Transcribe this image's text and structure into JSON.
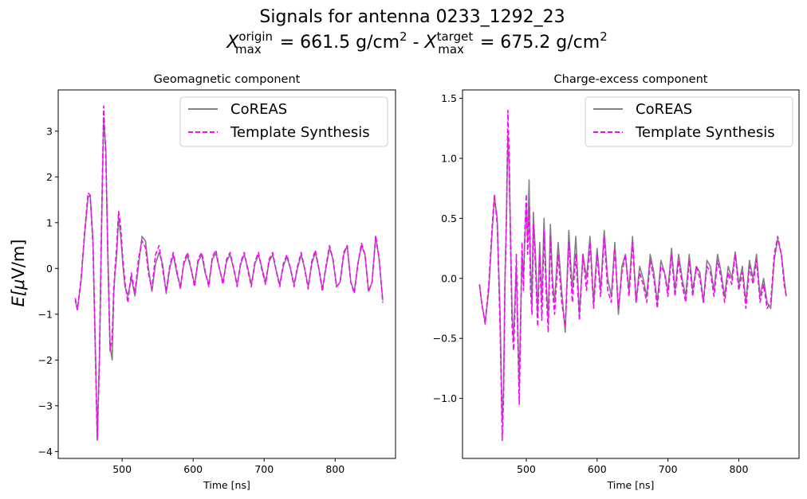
{
  "figure": {
    "title_line1": "Signals for antenna 0233_1292_23",
    "title_line2": {
      "sym1": "X",
      "sup1": "origin",
      "sub1": "max",
      "value1": " =  661.5 g/cm",
      "sep": " -  ",
      "sym2": "X",
      "sup2": "target",
      "sub2": "max",
      "value2": " =  675.2 g/cm",
      "exp": "2"
    }
  },
  "chart_data": [
    {
      "type": "line",
      "title": "Geomagnetic component",
      "xlabel": "Time [ns]",
      "ylabel_main": "E[",
      "ylabel_mu": "μ",
      "ylabel_unit": "V/m]",
      "xlim": [
        410,
        885
      ],
      "ylim": [
        -4.15,
        3.9
      ],
      "xticks": [
        500,
        600,
        700,
        800
      ],
      "yticks": [
        -4,
        -3,
        -2,
        -1,
        0,
        1,
        2,
        3
      ],
      "legend": {
        "position": "upper-right",
        "entries": [
          "CoREAS",
          "Template Synthesis"
        ]
      },
      "series": [
        {
          "name": "CoREAS",
          "color": "#808080",
          "dash": "solid",
          "x": [
            434,
            437,
            442,
            447,
            452,
            455,
            459,
            463,
            465,
            468,
            471,
            474,
            477,
            480,
            483,
            486,
            488,
            490,
            492,
            495,
            498,
            501,
            504,
            508,
            513,
            518,
            523,
            528,
            533,
            537,
            542,
            547,
            552,
            557,
            562,
            567,
            572,
            577,
            582,
            587,
            592,
            597,
            602,
            607,
            612,
            617,
            622,
            627,
            632,
            637,
            642,
            647,
            652,
            657,
            662,
            667,
            672,
            677,
            682,
            687,
            692,
            697,
            702,
            707,
            712,
            717,
            722,
            727,
            732,
            737,
            742,
            747,
            752,
            757,
            762,
            767,
            772,
            777,
            782,
            787,
            792,
            797,
            802,
            807,
            812,
            817,
            822,
            827,
            832,
            837,
            842,
            847,
            852,
            857,
            862,
            867
          ],
          "y": [
            -0.7,
            -0.9,
            -0.3,
            0.7,
            1.55,
            1.6,
            0.6,
            -2.2,
            -3.7,
            -2.0,
            0.8,
            3.3,
            2.6,
            0.3,
            -1.7,
            -2.0,
            -0.6,
            -0.1,
            0.2,
            1.1,
            0.7,
            0.1,
            -0.4,
            -0.6,
            -0.2,
            -0.6,
            0.05,
            0.7,
            0.6,
            0.0,
            -0.5,
            0.1,
            0.35,
            0.1,
            -0.55,
            0.0,
            0.3,
            -0.1,
            -0.4,
            0.1,
            0.28,
            0.0,
            -0.35,
            0.15,
            0.3,
            -0.1,
            -0.35,
            0.2,
            0.33,
            0.0,
            -0.3,
            0.15,
            0.3,
            0.0,
            -0.35,
            0.1,
            0.3,
            0.0,
            -0.35,
            0.1,
            0.3,
            0.0,
            -0.3,
            0.15,
            0.3,
            -0.05,
            -0.35,
            0.05,
            0.25,
            0.0,
            -0.35,
            0.0,
            0.3,
            0.0,
            -0.4,
            0.1,
            0.35,
            0.0,
            -0.45,
            0.0,
            0.45,
            0.2,
            -0.4,
            -0.3,
            0.3,
            0.5,
            -0.3,
            -0.5,
            0.1,
            0.5,
            0.3,
            -0.5,
            -0.3,
            0.7,
            0.2,
            -0.7
          ]
        },
        {
          "name": "Template Synthesis",
          "color": "#ff00ff",
          "dash": "dashed",
          "x": [
            434,
            437,
            442,
            447,
            452,
            455,
            459,
            463,
            465,
            468,
            471,
            474,
            477,
            480,
            483,
            486,
            488,
            490,
            492,
            495,
            498,
            501,
            504,
            508,
            513,
            518,
            523,
            528,
            533,
            537,
            542,
            547,
            552,
            557,
            562,
            567,
            572,
            577,
            582,
            587,
            592,
            597,
            602,
            607,
            612,
            617,
            622,
            627,
            632,
            637,
            642,
            647,
            652,
            657,
            662,
            667,
            672,
            677,
            682,
            687,
            692,
            697,
            702,
            707,
            712,
            717,
            722,
            727,
            732,
            737,
            742,
            747,
            752,
            757,
            762,
            767,
            772,
            777,
            782,
            787,
            792,
            797,
            802,
            807,
            812,
            817,
            822,
            827,
            832,
            837,
            842,
            847,
            852,
            857,
            862,
            867
          ],
          "y": [
            -0.65,
            -0.9,
            -0.25,
            0.75,
            1.65,
            1.6,
            0.5,
            -2.4,
            -3.75,
            -1.9,
            1.0,
            3.55,
            2.4,
            0.2,
            -1.8,
            -1.5,
            -0.5,
            0.0,
            0.4,
            1.25,
            0.9,
            0.2,
            -0.3,
            -0.75,
            -0.1,
            -0.55,
            0.2,
            0.6,
            0.45,
            -0.1,
            -0.45,
            0.3,
            0.5,
            0.0,
            -0.5,
            0.05,
            0.35,
            -0.05,
            -0.45,
            0.15,
            0.35,
            0.0,
            -0.4,
            0.2,
            0.35,
            -0.05,
            -0.4,
            0.25,
            0.4,
            0.0,
            -0.35,
            0.2,
            0.35,
            0.0,
            -0.4,
            0.15,
            0.35,
            -0.05,
            -0.4,
            0.15,
            0.35,
            -0.05,
            -0.35,
            0.2,
            0.35,
            -0.05,
            -0.4,
            0.1,
            0.3,
            0.0,
            -0.4,
            0.05,
            0.35,
            0.0,
            -0.45,
            0.15,
            0.4,
            0.0,
            -0.5,
            0.05,
            0.5,
            0.2,
            -0.4,
            -0.3,
            0.35,
            0.5,
            -0.3,
            -0.55,
            0.1,
            0.55,
            0.3,
            -0.5,
            -0.3,
            0.72,
            0.2,
            -0.75
          ]
        }
      ]
    },
    {
      "type": "line",
      "title": "Charge-excess component",
      "xlabel": "Time [ns]",
      "xlim": [
        410,
        885
      ],
      "ylim": [
        -1.5,
        1.57
      ],
      "xticks": [
        500,
        600,
        700,
        800
      ],
      "yticks": [
        -1.0,
        -0.5,
        0.0,
        0.5,
        1.0,
        1.5
      ],
      "ytick_labels": [
        "−1.0",
        "−0.5",
        "0.0",
        "0.5",
        "1.0",
        "1.5"
      ],
      "legend": {
        "position": "upper-right",
        "entries": [
          "CoREAS",
          "Template Synthesis"
        ]
      },
      "series": [
        {
          "name": "CoREAS",
          "color": "#808080",
          "dash": "solid",
          "x": [
            434,
            437,
            442,
            447,
            452,
            455,
            459,
            463,
            466,
            468,
            470,
            472,
            474,
            476,
            478,
            480,
            482,
            484,
            486,
            488,
            490,
            492,
            494,
            496,
            498,
            500,
            502,
            504,
            506,
            508,
            510,
            513,
            516,
            519,
            522,
            525,
            528,
            531,
            534,
            537,
            540,
            545,
            550,
            555,
            560,
            565,
            570,
            575,
            580,
            585,
            590,
            595,
            600,
            605,
            610,
            615,
            620,
            625,
            630,
            635,
            640,
            645,
            650,
            655,
            660,
            665,
            670,
            675,
            680,
            685,
            690,
            695,
            700,
            705,
            710,
            715,
            720,
            725,
            730,
            735,
            740,
            745,
            750,
            755,
            760,
            765,
            770,
            775,
            780,
            785,
            790,
            795,
            800,
            805,
            810,
            815,
            820,
            825,
            830,
            835,
            840,
            845,
            850,
            855,
            860,
            864,
            867
          ],
          "y": [
            -0.05,
            -0.2,
            -0.37,
            -0.1,
            0.4,
            0.67,
            0.5,
            -0.3,
            -1.2,
            -0.9,
            0.0,
            0.5,
            1.2,
            0.9,
            0.3,
            -0.3,
            -0.5,
            -0.2,
            0.1,
            -0.4,
            -0.9,
            -0.3,
            0.2,
            0.0,
            0.35,
            0.6,
            0.3,
            0.82,
            0.1,
            -0.2,
            0.55,
            0.2,
            -0.3,
            0.3,
            -0.2,
            0.5,
            0.0,
            -0.35,
            0.45,
            0.0,
            -0.2,
            0.3,
            -0.1,
            -0.45,
            0.4,
            -0.1,
            0.35,
            -0.3,
            0.2,
            0.0,
            0.35,
            -0.2,
            0.25,
            -0.1,
            0.4,
            0.0,
            -0.15,
            0.3,
            -0.3,
            0.1,
            0.2,
            -0.1,
            0.35,
            -0.2,
            0.1,
            0.0,
            -0.15,
            0.2,
            0.05,
            -0.2,
            0.15,
            0.05,
            -0.1,
            0.25,
            -0.1,
            0.2,
            0.0,
            -0.15,
            0.2,
            -0.1,
            0.1,
            0.05,
            -0.2,
            0.15,
            0.1,
            -0.1,
            0.2,
            0.05,
            -0.15,
            0.1,
            0.0,
            0.22,
            -0.05,
            0.1,
            -0.2,
            0.15,
            0.0,
            0.2,
            -0.15,
            0.0,
            -0.2,
            -0.25,
            0.15,
            0.33,
            0.2,
            0.0,
            -0.15
          ]
        },
        {
          "name": "Template Synthesis",
          "color": "#ff00ff",
          "dash": "dashed",
          "x": [
            434,
            437,
            442,
            447,
            452,
            455,
            459,
            463,
            466,
            468,
            470,
            472,
            474,
            476,
            478,
            480,
            482,
            484,
            486,
            488,
            490,
            492,
            494,
            496,
            498,
            500,
            502,
            504,
            506,
            508,
            510,
            513,
            516,
            519,
            522,
            525,
            528,
            531,
            534,
            537,
            540,
            545,
            550,
            555,
            560,
            565,
            570,
            575,
            580,
            585,
            590,
            595,
            600,
            605,
            610,
            615,
            620,
            625,
            630,
            635,
            640,
            645,
            650,
            655,
            660,
            665,
            670,
            675,
            680,
            685,
            690,
            695,
            700,
            705,
            710,
            715,
            720,
            725,
            730,
            735,
            740,
            745,
            750,
            755,
            760,
            765,
            770,
            775,
            780,
            785,
            790,
            795,
            800,
            805,
            810,
            815,
            820,
            825,
            830,
            835,
            840,
            845,
            850,
            855,
            860,
            864,
            867
          ],
          "y": [
            -0.05,
            -0.2,
            -0.38,
            -0.05,
            0.45,
            0.7,
            0.45,
            -0.4,
            -1.35,
            -1.0,
            0.0,
            0.5,
            1.4,
            1.0,
            0.2,
            -0.4,
            -0.6,
            -0.3,
            0.2,
            -0.5,
            -1.05,
            -0.4,
            0.3,
            -0.1,
            0.4,
            0.7,
            0.2,
            0.6,
            -0.1,
            -0.3,
            0.45,
            0.1,
            -0.4,
            0.2,
            -0.35,
            0.4,
            -0.1,
            -0.45,
            0.35,
            -0.1,
            -0.3,
            0.2,
            -0.2,
            -0.4,
            0.3,
            -0.2,
            0.2,
            -0.35,
            0.2,
            -0.1,
            0.3,
            -0.25,
            0.2,
            -0.15,
            0.35,
            -0.1,
            -0.2,
            0.25,
            -0.25,
            0.05,
            0.2,
            -0.15,
            0.3,
            -0.2,
            0.05,
            -0.05,
            -0.2,
            0.15,
            0.0,
            -0.25,
            0.1,
            0.05,
            -0.15,
            0.2,
            -0.15,
            0.15,
            -0.05,
            -0.2,
            0.15,
            -0.15,
            0.1,
            0.0,
            -0.2,
            0.1,
            0.05,
            -0.15,
            0.15,
            0.0,
            -0.2,
            0.05,
            -0.05,
            0.2,
            -0.1,
            0.05,
            -0.25,
            0.1,
            -0.05,
            0.15,
            -0.2,
            -0.05,
            -0.25,
            -0.2,
            0.2,
            0.35,
            0.2,
            -0.05,
            -0.15
          ]
        }
      ]
    }
  ]
}
